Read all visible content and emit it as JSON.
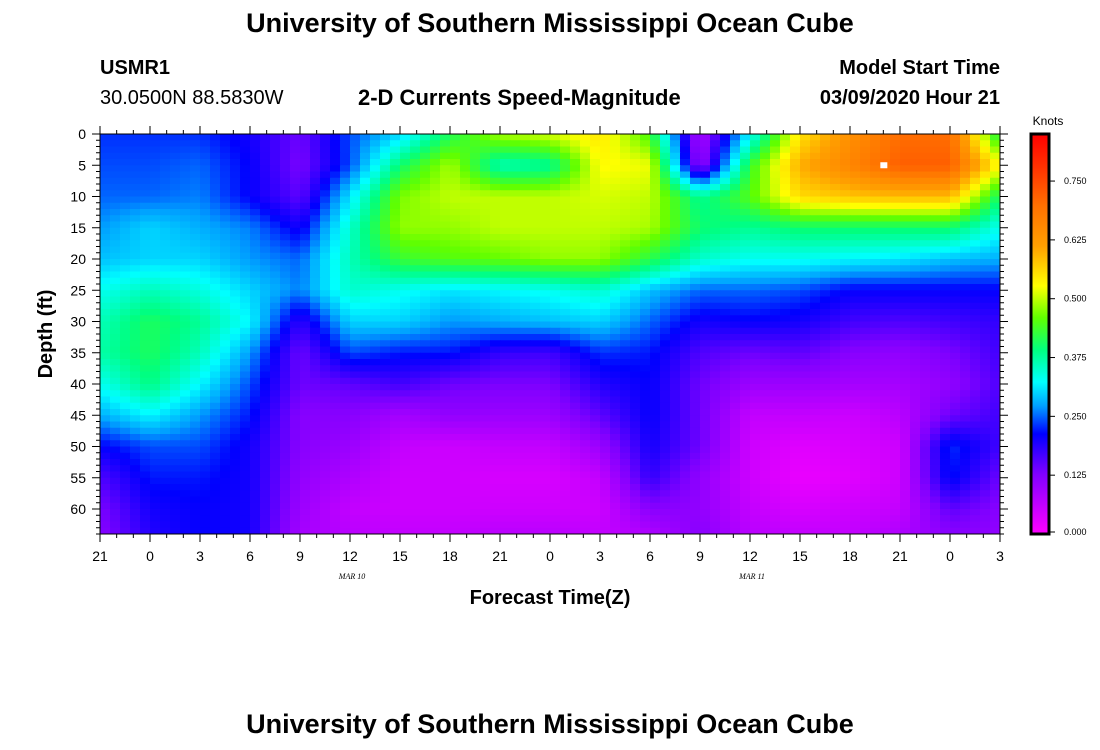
{
  "header": {
    "title": "University of Southern Mississippi Ocean Cube",
    "station": "USMR1",
    "coords": "30.0500N 88.5830W",
    "plot_title": "2-D Currents Speed-Magnitude",
    "model_label": "Model Start Time",
    "model_time": "03/09/2020 Hour 21"
  },
  "footer": {
    "title": "University of Southern Mississippi Ocean Cube"
  },
  "chart_data": {
    "type": "heatmap",
    "title": "2-D Currents Speed-Magnitude",
    "xlabel": "Forecast Time(Z)",
    "ylabel": "Depth (ft)",
    "x_hours": [
      0,
      3,
      6,
      9,
      12,
      15,
      18,
      21,
      24,
      27,
      30,
      33,
      36,
      39,
      42,
      45,
      48,
      51,
      54
    ],
    "x_tick_labels": [
      "21",
      "0",
      "3",
      "6",
      "9",
      "12",
      "15",
      "18",
      "21",
      "0",
      "3",
      "6",
      "9",
      "12",
      "15",
      "18",
      "21",
      "0",
      "3"
    ],
    "date_labels": [
      {
        "hour": 15,
        "label": "MAR 10"
      },
      {
        "hour": 39,
        "label": "MAR 11"
      }
    ],
    "y_depths": [
      0,
      5,
      10,
      15,
      20,
      25,
      30,
      35,
      40,
      45,
      50,
      55,
      60
    ],
    "y_tick_labels": [
      "0",
      "5",
      "10",
      "15",
      "20",
      "25",
      "30",
      "35",
      "40",
      "45",
      "50",
      "55",
      "60"
    ],
    "ylim": [
      0,
      64
    ],
    "xlim": [
      0,
      54
    ],
    "colorbar": {
      "label": "Knots",
      "range": [
        0,
        0.85
      ],
      "ticks": [
        0.0,
        0.125,
        0.25,
        0.375,
        0.5,
        0.625,
        0.75
      ],
      "tick_labels": [
        "0.000",
        "0.125",
        "0.250",
        "0.375",
        "0.500",
        "0.625",
        "0.750"
      ]
    },
    "speed_knots": [
      [
        0.23,
        0.23,
        0.23,
        0.2,
        0.14,
        0.24,
        0.3,
        0.41,
        0.49,
        0.51,
        0.55,
        0.44,
        0.08,
        0.32,
        0.55,
        0.64,
        0.7,
        0.7,
        0.4
      ],
      [
        0.24,
        0.24,
        0.25,
        0.21,
        0.13,
        0.24,
        0.4,
        0.49,
        0.36,
        0.38,
        0.53,
        0.52,
        0.1,
        0.43,
        0.6,
        0.66,
        0.72,
        0.72,
        0.53
      ],
      [
        0.25,
        0.25,
        0.26,
        0.21,
        0.15,
        0.31,
        0.47,
        0.5,
        0.5,
        0.5,
        0.51,
        0.5,
        0.38,
        0.45,
        0.56,
        0.58,
        0.59,
        0.59,
        0.4
      ],
      [
        0.27,
        0.3,
        0.28,
        0.26,
        0.2,
        0.35,
        0.48,
        0.48,
        0.5,
        0.5,
        0.5,
        0.49,
        0.4,
        0.38,
        0.4,
        0.4,
        0.4,
        0.4,
        0.33
      ],
      [
        0.29,
        0.3,
        0.3,
        0.27,
        0.25,
        0.36,
        0.43,
        0.45,
        0.46,
        0.48,
        0.48,
        0.42,
        0.35,
        0.33,
        0.33,
        0.32,
        0.31,
        0.29,
        0.28
      ],
      [
        0.33,
        0.36,
        0.34,
        0.3,
        0.26,
        0.35,
        0.33,
        0.31,
        0.32,
        0.33,
        0.35,
        0.29,
        0.25,
        0.25,
        0.24,
        0.21,
        0.21,
        0.21,
        0.21
      ],
      [
        0.36,
        0.41,
        0.38,
        0.32,
        0.18,
        0.3,
        0.3,
        0.27,
        0.28,
        0.29,
        0.3,
        0.25,
        0.2,
        0.21,
        0.2,
        0.17,
        0.16,
        0.17,
        0.18
      ],
      [
        0.37,
        0.41,
        0.36,
        0.27,
        0.14,
        0.24,
        0.22,
        0.22,
        0.18,
        0.17,
        0.23,
        0.22,
        0.16,
        0.14,
        0.15,
        0.12,
        0.11,
        0.13,
        0.17
      ],
      [
        0.33,
        0.39,
        0.32,
        0.24,
        0.14,
        0.15,
        0.17,
        0.14,
        0.13,
        0.13,
        0.19,
        0.21,
        0.14,
        0.1,
        0.1,
        0.09,
        0.09,
        0.11,
        0.16
      ],
      [
        0.28,
        0.32,
        0.27,
        0.22,
        0.12,
        0.12,
        0.09,
        0.11,
        0.1,
        0.1,
        0.15,
        0.21,
        0.14,
        0.06,
        0.06,
        0.05,
        0.07,
        0.14,
        0.17
      ],
      [
        0.21,
        0.24,
        0.24,
        0.2,
        0.12,
        0.1,
        0.06,
        0.05,
        0.06,
        0.06,
        0.1,
        0.2,
        0.14,
        0.05,
        0.03,
        0.04,
        0.05,
        0.23,
        0.17
      ],
      [
        0.16,
        0.22,
        0.22,
        0.2,
        0.11,
        0.08,
        0.05,
        0.05,
        0.04,
        0.04,
        0.06,
        0.18,
        0.11,
        0.05,
        0.02,
        0.03,
        0.05,
        0.22,
        0.14
      ],
      [
        0.13,
        0.2,
        0.21,
        0.2,
        0.1,
        0.06,
        0.05,
        0.05,
        0.05,
        0.05,
        0.05,
        0.12,
        0.11,
        0.06,
        0.04,
        0.05,
        0.06,
        0.15,
        0.12
      ],
      [
        0.12,
        0.19,
        0.21,
        0.2,
        0.09,
        0.07,
        0.06,
        0.06,
        0.07,
        0.07,
        0.06,
        0.08,
        0.12,
        0.07,
        0.06,
        0.06,
        0.08,
        0.12,
        0.11
      ]
    ],
    "speed_depths": [
      0,
      5,
      10,
      15,
      20,
      25,
      30,
      35,
      40,
      45,
      50,
      55,
      60,
      64
    ],
    "marker": {
      "hour": 47,
      "depth": 5
    }
  }
}
